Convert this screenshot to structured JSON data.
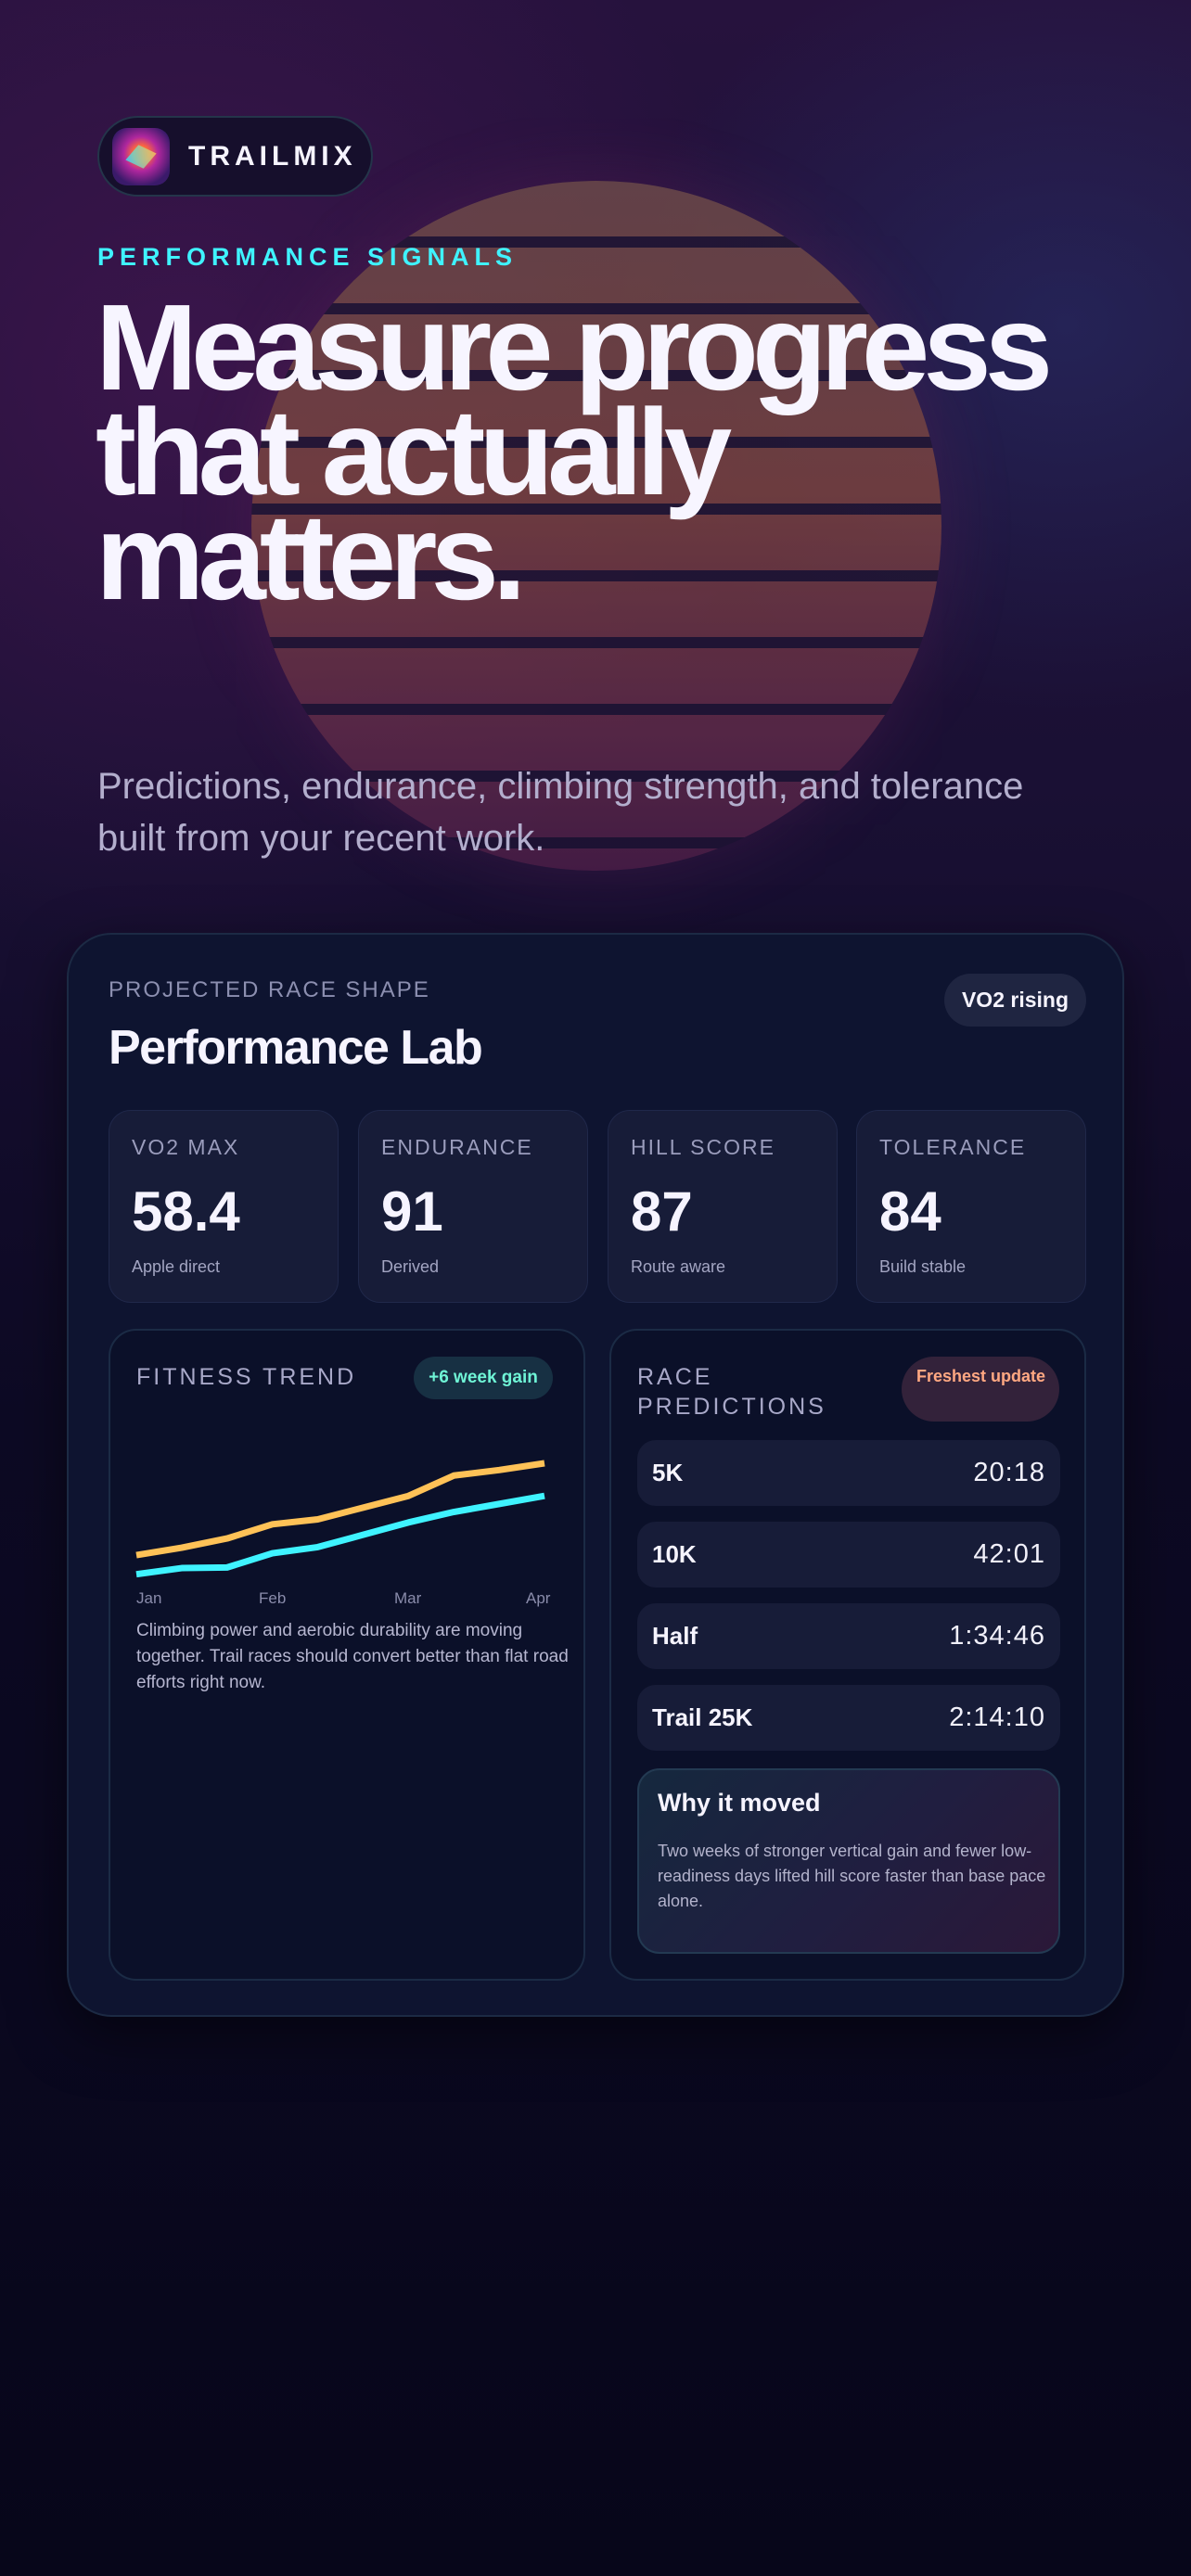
{
  "brand": {
    "name": "TRAILMIX"
  },
  "hero": {
    "eyebrow": "PERFORMANCE SIGNALS",
    "headline": "Measure progress that actually matters.",
    "subtitle": "Predictions, endurance, climbing strength, and tolerance built from your recent work."
  },
  "lab": {
    "eyebrow": "PROJECTED RACE SHAPE",
    "title": "Performance Lab",
    "badge": "VO2 rising",
    "stats": [
      {
        "label": "VO2 MAX",
        "value": "58.4",
        "sub": "Apple direct"
      },
      {
        "label": "ENDURANCE",
        "value": "91",
        "sub": "Derived"
      },
      {
        "label": "HILL SCORE",
        "value": "87",
        "sub": "Route aware"
      },
      {
        "label": "TOLERANCE",
        "value": "84",
        "sub": "Build stable"
      }
    ]
  },
  "trend": {
    "title": "FITNESS TREND",
    "badge": "+6 week gain",
    "text": "Climbing power and aerobic durability are moving together. Trail races should convert better than flat road efforts right now."
  },
  "chart_data": {
    "type": "line",
    "x_ticks": [
      "Jan",
      "Feb",
      "Mar",
      "Apr"
    ],
    "ylim": [
      0,
      100
    ],
    "grid": false,
    "series": [
      {
        "color": "#ffc257",
        "values": [
          21,
          27,
          34.5,
          46,
          50,
          59.5,
          69,
          85.5,
          90,
          95.5
        ]
      },
      {
        "color": "#3ff3ff",
        "values": [
          5.5,
          10.5,
          11,
          22.5,
          27.5,
          37.5,
          47.5,
          56,
          62.5,
          69
        ]
      }
    ]
  },
  "predictions": {
    "title": "RACE PREDICTIONS",
    "badge": "Freshest update",
    "rows": [
      {
        "name": "5K",
        "time": "20:18"
      },
      {
        "name": "10K",
        "time": "42:01"
      },
      {
        "name": "Half",
        "time": "1:34:46"
      },
      {
        "name": "Trail 25K",
        "time": "2:14:10"
      }
    ],
    "why": {
      "title": "Why it moved",
      "body": "Two weeks of stronger vertical gain and fewer low-readiness days lifted hill score faster than base pace alone."
    }
  },
  "colors": {
    "accent": "#3ff3ff",
    "orange": "#ffc257",
    "card": "#0e1430"
  }
}
